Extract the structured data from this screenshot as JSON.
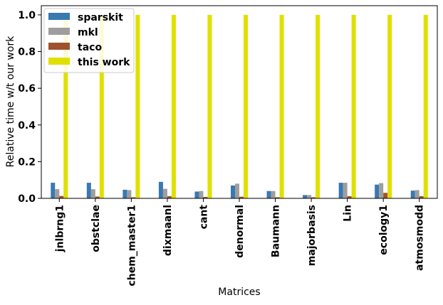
{
  "chart_data": {
    "type": "bar",
    "xlabel": "Matrices",
    "ylabel": "Relative time w/t our work",
    "ylim": [
      0,
      1.05
    ],
    "yticks": [
      "0.0",
      "0.2",
      "0.4",
      "0.6",
      "0.8",
      "1.0"
    ],
    "ytick_values": [
      0.0,
      0.2,
      0.4,
      0.6,
      0.8,
      1.0
    ],
    "categories": [
      "jnlbrng1",
      "obstclae",
      "chem_master1",
      "dixmaanl",
      "cant",
      "denormal",
      "Baumann",
      "majorbasis",
      "Lin",
      "ecology1",
      "atmosmodd"
    ],
    "series": [
      {
        "name": "sparskit",
        "color": "#3a78b0",
        "values": [
          0.085,
          0.085,
          0.047,
          0.09,
          0.037,
          0.07,
          0.04,
          0.018,
          0.085,
          0.075,
          0.042
        ]
      },
      {
        "name": "mkl",
        "color": "#9e9e9e",
        "values": [
          0.05,
          0.05,
          0.045,
          0.052,
          0.04,
          0.08,
          0.04,
          0.018,
          0.085,
          0.083,
          0.045
        ]
      },
      {
        "name": "taco",
        "color": "#a0522d",
        "values": [
          0.013,
          0.01,
          0.006,
          0.012,
          0.008,
          0.009,
          0.006,
          0.006,
          0.012,
          0.03,
          0.012
        ]
      },
      {
        "name": "this work",
        "color": "#e0e000",
        "values": [
          1.0,
          1.0,
          1.0,
          1.0,
          1.0,
          1.0,
          1.0,
          1.0,
          1.0,
          1.0,
          1.0
        ]
      }
    ],
    "legend_position": "top-left",
    "grid": false
  }
}
